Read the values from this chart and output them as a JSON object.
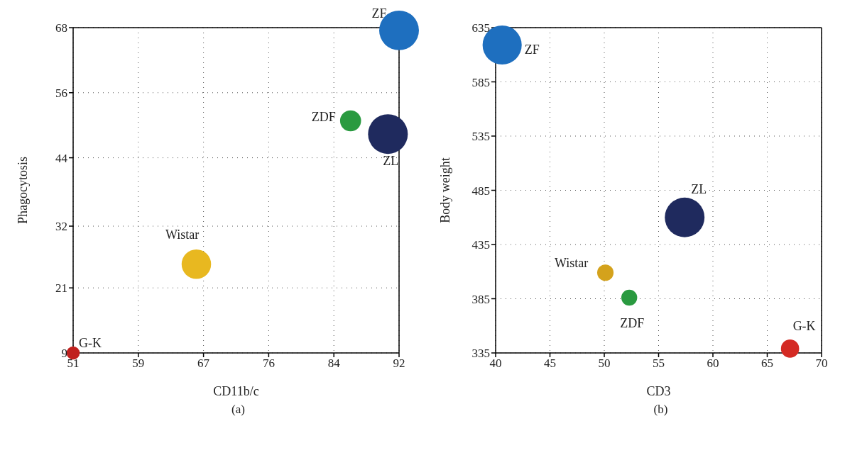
{
  "chart_data": [
    {
      "type": "bubble",
      "xlabel": "CD11b/c",
      "ylabel": "Phagocytosis",
      "annotations": [
        "(a)"
      ],
      "xlim": [
        51,
        92
      ],
      "ylim": [
        9,
        68
      ],
      "xticks": [
        51,
        {
          "value": 59.2,
          "label": "59"
        },
        {
          "value": 67.4,
          "label": "67"
        },
        {
          "value": 75.6,
          "label": "76"
        },
        {
          "value": 83.8,
          "label": "84"
        },
        92
      ],
      "yticks": [
        9,
        {
          "value": 20.8,
          "label": "21"
        },
        32,
        {
          "value": 44.4,
          "label": "44"
        },
        {
          "value": 56.2,
          "label": "56"
        },
        68
      ],
      "grid": true,
      "legend": false,
      "marker": "circle",
      "series": [
        {
          "name": "ZF",
          "color": "#1e6fbf",
          "x": [
            92
          ],
          "values": [
            67.5
          ],
          "sizes": [
            1
          ]
        },
        {
          "name": "ZDF",
          "color": "#2a9a40",
          "x": [
            85.9
          ],
          "values": [
            51.1
          ],
          "sizes": [
            0.28
          ]
        },
        {
          "name": "ZL",
          "color": "#1f2a5e",
          "x": [
            90.6
          ],
          "values": [
            48.7
          ],
          "sizes": [
            1
          ]
        },
        {
          "name": "Wistar",
          "color": "#e8b820",
          "x": [
            66.5
          ],
          "values": [
            25.1
          ],
          "sizes": [
            0.55
          ]
        },
        {
          "name": "G-K",
          "color": "#c0201e",
          "x": [
            51
          ],
          "values": [
            9
          ],
          "sizes": [
            0.11
          ]
        }
      ]
    },
    {
      "type": "bubble",
      "xlabel": "CD3",
      "ylabel": "Body weight",
      "annotations": [
        "(b)"
      ],
      "xlim": [
        40,
        70
      ],
      "ylim": [
        335,
        635
      ],
      "xticks": [
        40,
        45,
        50,
        55,
        60,
        65,
        70
      ],
      "yticks": [
        335,
        385,
        435,
        485,
        535,
        585,
        635
      ],
      "grid": true,
      "legend": false,
      "marker": "circle",
      "series": [
        {
          "name": "ZF",
          "color": "#1e6fbf",
          "x": [
            40.6
          ],
          "values": [
            619
          ],
          "sizes": [
            0.97
          ]
        },
        {
          "name": "ZL",
          "color": "#1f2a5e",
          "x": [
            57.4
          ],
          "values": [
            460
          ],
          "sizes": [
            1
          ]
        },
        {
          "name": "Wistar",
          "color": "#d4a21c",
          "x": [
            50.1
          ],
          "values": [
            409
          ],
          "sizes": [
            0.17
          ]
        },
        {
          "name": "ZDF",
          "color": "#2a9a40",
          "x": [
            52.3
          ],
          "values": [
            386
          ],
          "sizes": [
            0.16
          ]
        },
        {
          "name": "G-K",
          "color": "#d42a24",
          "x": [
            67.1
          ],
          "values": [
            339
          ],
          "sizes": [
            0.21
          ]
        }
      ]
    }
  ]
}
